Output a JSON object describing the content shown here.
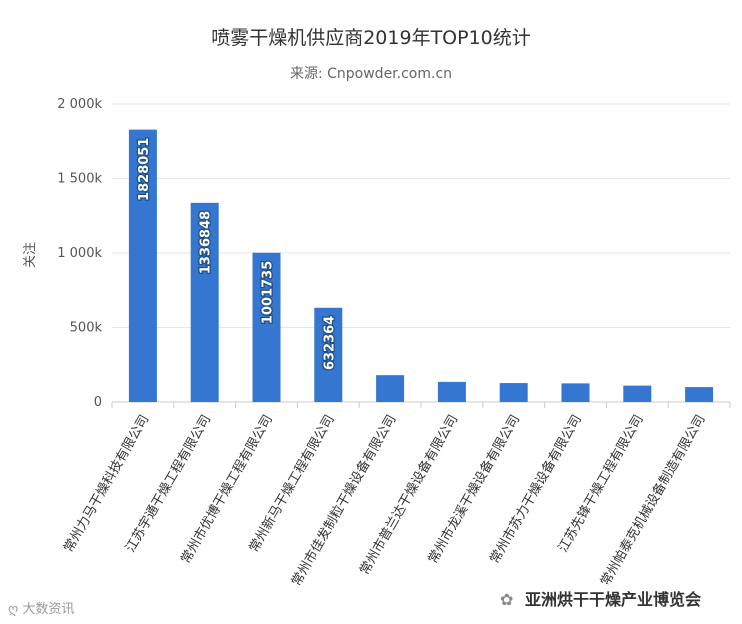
{
  "chart_data": {
    "type": "bar",
    "title": "喷雾干燥机供应商2019年TOP10统计",
    "subtitle": "来源: Cnpowder.com.cn",
    "ylabel": "关注",
    "ylim": [
      0,
      2000000
    ],
    "yticks": [
      "0",
      "500k",
      "1 000k",
      "1 500k",
      "2 000k"
    ],
    "grid": true,
    "legend": "none",
    "categories": [
      "常州力马干燥科技有限公司",
      "江苏宇通干燥工程有限公司",
      "常州市优博干燥工程有限公司",
      "常州新马干燥工程有限公司",
      "常州市佳发制粒干燥设备有限公司",
      "常州市普兰达干燥设备有限公司",
      "常州市龙溪干燥设备有限公司",
      "常州市苏力干燥设备有限公司",
      "江苏先锋干燥工程有限公司",
      "常州帕泰克机械设备制造有限公司"
    ],
    "values": [
      1828051,
      1336848,
      1001735,
      632364,
      180000,
      135000,
      127000,
      125000,
      110000,
      100000
    ],
    "data_labels": [
      "1828051",
      "1336848",
      "1001735",
      "632364",
      "",
      "",
      "",
      "",
      "",
      ""
    ],
    "bar_color": "#3576d0"
  },
  "watermarks": {
    "left": "大数资讯",
    "right": "亚洲烘干干燥产业博览会"
  }
}
